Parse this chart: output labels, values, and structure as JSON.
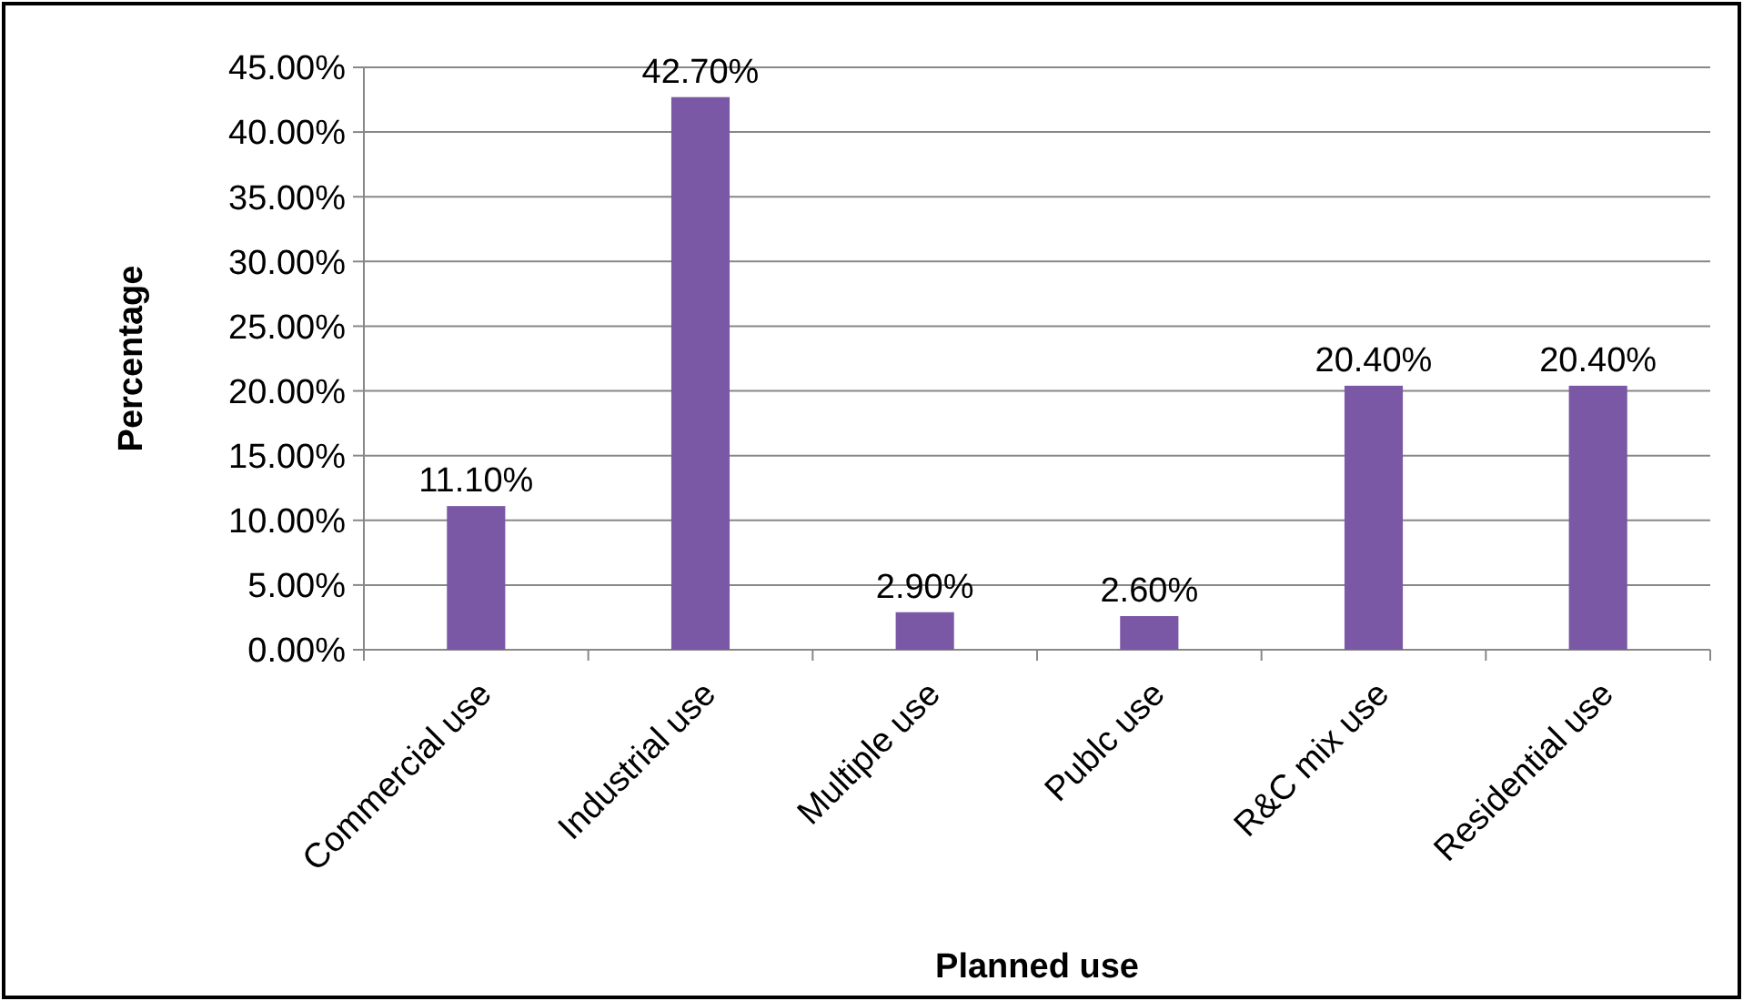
{
  "chart_data": {
    "type": "bar",
    "xlabel": "Planned use",
    "ylabel": "Percentage",
    "categories": [
      "Commercial use",
      "Industrial use",
      "Multiple use",
      "Publc use",
      "R&C mix use",
      "Residential use"
    ],
    "values": [
      11.1,
      42.7,
      2.9,
      2.6,
      20.4,
      20.4
    ],
    "value_labels": [
      "11.10%",
      "42.70%",
      "2.90%",
      "2.60%",
      "20.40%",
      "20.40%"
    ],
    "color": "#7b58a6",
    "ylim": [
      0,
      45
    ],
    "yticks": [
      {
        "value": 0,
        "label": "0.00%"
      },
      {
        "value": 5,
        "label": "5.00%"
      },
      {
        "value": 10,
        "label": "10.00%"
      },
      {
        "value": 15,
        "label": "15.00%"
      },
      {
        "value": 20,
        "label": "20.00%"
      },
      {
        "value": 25,
        "label": "25.00%"
      },
      {
        "value": 30,
        "label": "30.00%"
      },
      {
        "value": 35,
        "label": "35.00%"
      },
      {
        "value": 40,
        "label": "40.00%"
      },
      {
        "value": 45,
        "label": "45.00%"
      }
    ],
    "grid": "y"
  }
}
